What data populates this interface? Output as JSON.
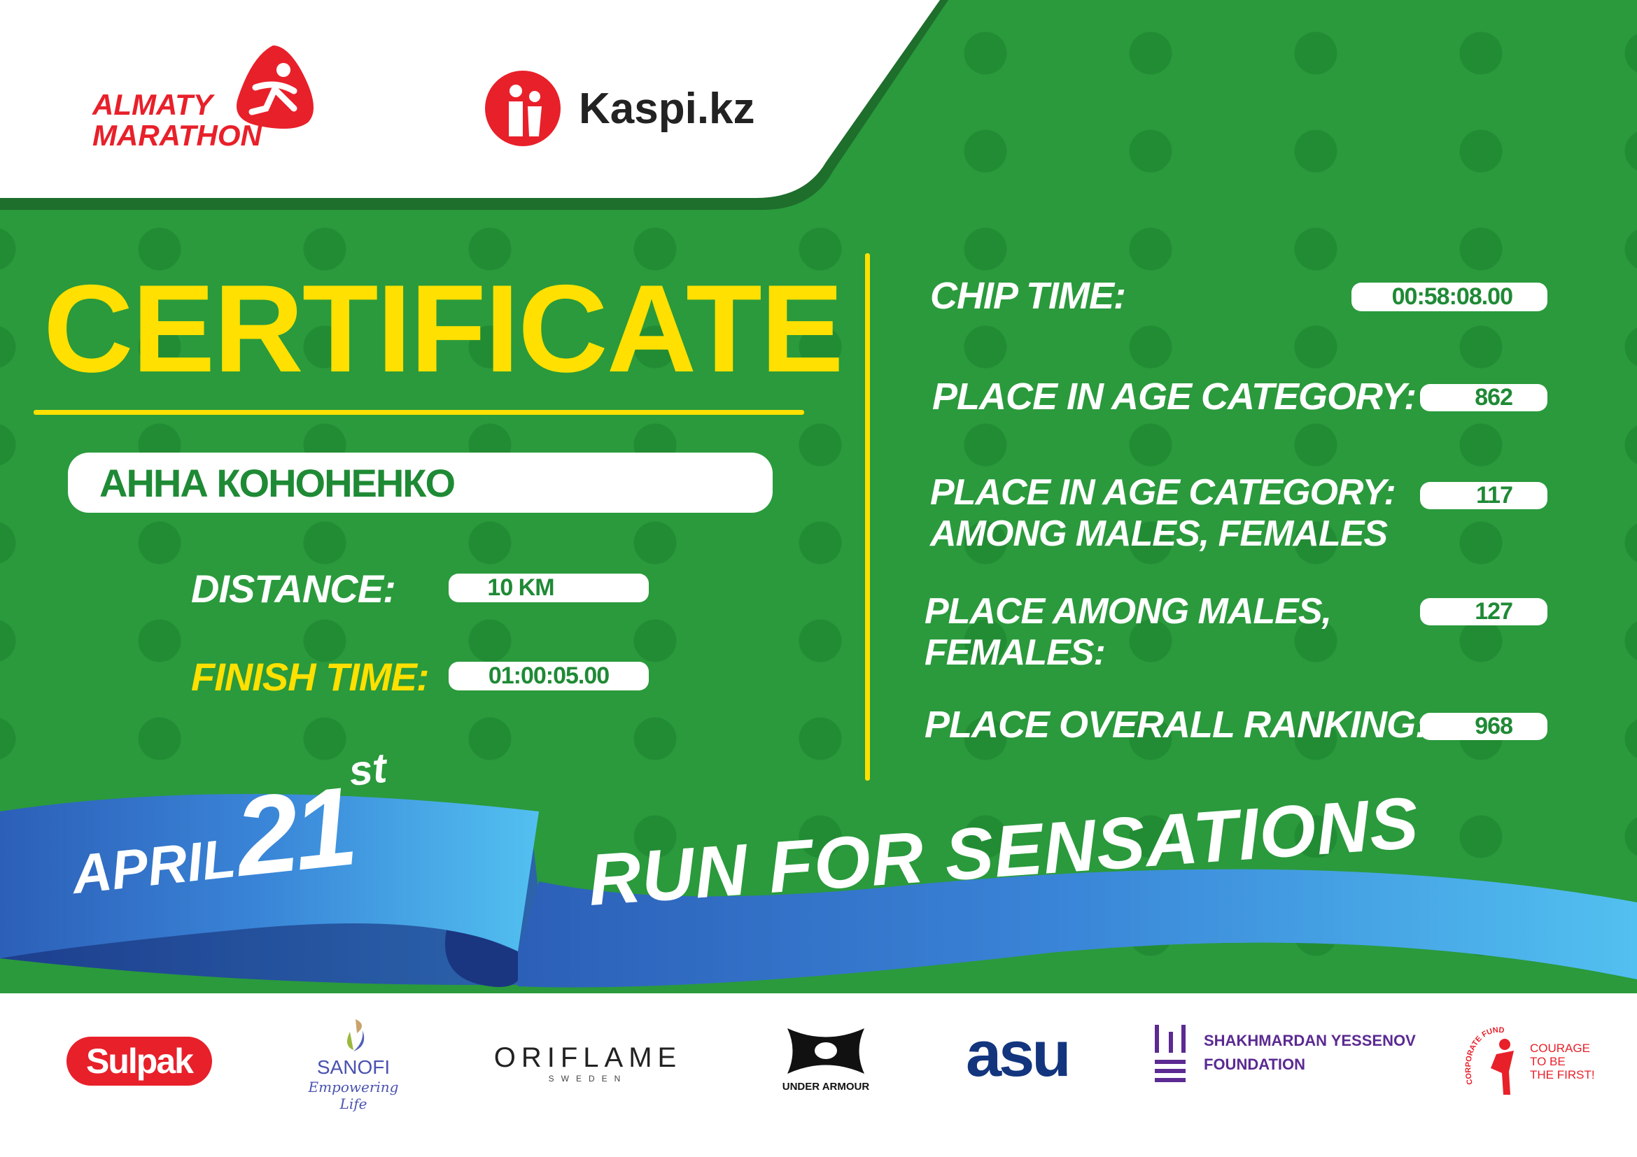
{
  "header": {
    "event_logo_line1": "ALMATY",
    "event_logo_line2": "MARATHON",
    "sponsor_logo": "Kaspi.kz"
  },
  "certificate": {
    "title": "CERTIFICATE",
    "participant_name": "АННА КОНОНЕНКО",
    "distance_label": "DISTANCE:",
    "distance_value": "10 KM",
    "finish_time_label": "FINISH TIME:",
    "finish_time_value": "01:00:05.00"
  },
  "results": {
    "chip_time_label": "CHIP TIME:",
    "chip_time_value": "00:58:08.00",
    "age_category_label": "PLACE IN AGE CATEGORY:",
    "age_category_value": "862",
    "age_category_gender_label_1": "PLACE IN AGE CATEGORY:",
    "age_category_gender_label_2": "AMONG MALES, FEMALES",
    "age_category_gender_value": "117",
    "gender_label_1": "PLACE AMONG MALES,",
    "gender_label_2": "FEMALES:",
    "gender_value": "127",
    "overall_label": "PLACE OVERALL RANKING:",
    "overall_value": "968"
  },
  "banner": {
    "month": "APRIL",
    "day": "21",
    "suffix": "st",
    "slogan": "RUN FOR SENSATIONS"
  },
  "sponsors": [
    {
      "name": "Sulpak"
    },
    {
      "name": "SANOFI",
      "tagline": "Empowering Life"
    },
    {
      "name": "ORIFLAME",
      "tagline": "SWEDEN"
    },
    {
      "name": "UNDER ARMOUR"
    },
    {
      "name": "asu"
    },
    {
      "name": "SHAKHMARDAN YESSENOV",
      "tagline": "FOUNDATION"
    },
    {
      "name": "CORPORATE FUND",
      "tagline_1": "COURAGE",
      "tagline_2": "TO BE",
      "tagline_3": "THE FIRST!"
    }
  ],
  "colors": {
    "green": "#2a9a3c",
    "yellow": "#ffe000",
    "red": "#e8202a",
    "blue": "#3a86d8"
  }
}
